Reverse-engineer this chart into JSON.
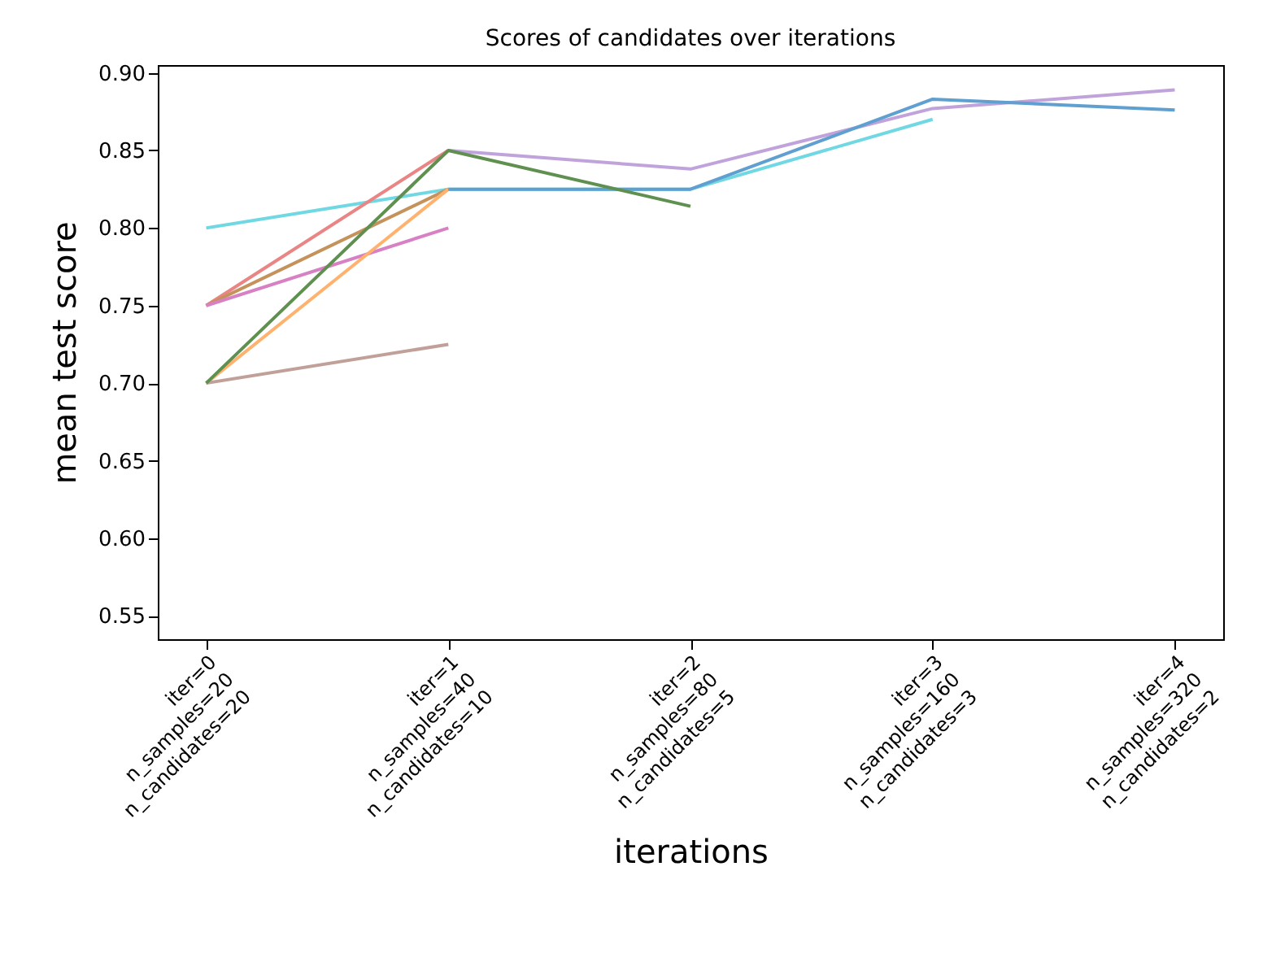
{
  "chart_data": {
    "type": "line",
    "title": "Scores of candidates over iterations",
    "xlabel": "iterations",
    "ylabel": "mean test score",
    "categories": [
      "iter=0\nn_samples=20\nn_candidates=20",
      "iter=1\nn_samples=40\nn_candidates=10",
      "iter=2\nn_samples=80\nn_candidates=5",
      "iter=3\nn_samples=160\nn_candidates=3",
      "iter=4\nn_samples=320\nn_candidates=2"
    ],
    "ylim": [
      0.535,
      0.905
    ],
    "yticks": [
      0.55,
      {
        "value": 0.6,
        "label": "0.60"
      },
      0.65,
      {
        "value": 0.7,
        "label": "0.70"
      },
      0.75,
      {
        "value": 0.8,
        "label": "0.80"
      },
      0.85,
      {
        "value": 0.9,
        "label": "0.90"
      }
    ],
    "grid": false,
    "legend": false,
    "series": [
      {
        "color": "#6fd8e3",
        "values": [
          0.8,
          0.825,
          0.825,
          0.87,
          null
        ]
      },
      {
        "color": "#e98584",
        "values": [
          0.75,
          0.85,
          null,
          null,
          null
        ]
      },
      {
        "color": "#c4925a",
        "values": [
          0.75,
          0.825,
          null,
          null,
          null
        ]
      },
      {
        "color": "#d880c4",
        "values": [
          0.75,
          0.8,
          null,
          null,
          null
        ]
      },
      {
        "color": "#ffb26e",
        "values": [
          0.7,
          0.825,
          null,
          null,
          null
        ]
      },
      {
        "color": "#c2a09a",
        "values": [
          0.7,
          0.725,
          null,
          null,
          null
        ]
      },
      {
        "color": "#c1a3dc",
        "values": [
          null,
          0.85,
          0.838,
          0.877,
          0.889
        ]
      },
      {
        "color": "#5fa0d0",
        "values": [
          null,
          0.825,
          0.825,
          0.883,
          0.876
        ]
      },
      {
        "color": "#5f9050",
        "values": [
          0.7,
          0.85,
          0.814,
          null,
          null
        ]
      }
    ]
  }
}
